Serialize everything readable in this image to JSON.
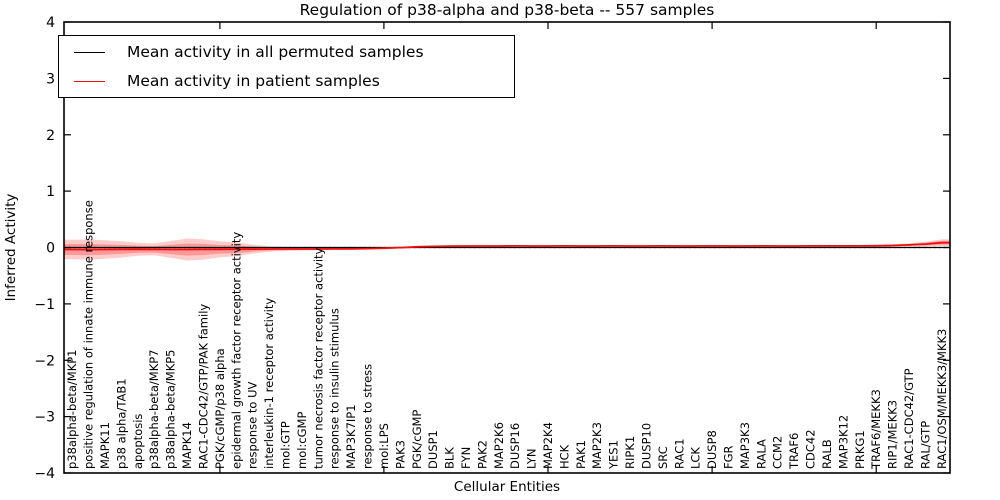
{
  "chart_data": {
    "type": "line",
    "title": "Regulation of p38-alpha and p38-beta -- 557 samples",
    "xlabel": "Cellular Entities",
    "ylabel": "Inferred Activity",
    "ylim": [
      -4,
      4
    ],
    "yticks": [
      4,
      3,
      2,
      1,
      0,
      -1,
      -2,
      -3,
      -4
    ],
    "xticks_major": [
      10,
      20,
      30,
      40,
      50
    ],
    "grid": false,
    "legend_position": "upper left",
    "zero_line_style": "dotted",
    "categories": [
      "p38alpha-beta/MKP1",
      "positive regulation of innate immune response",
      "MAPK11",
      "p38 alpha/TAB1",
      "apoptosis",
      "p38alpha-beta/MKP7",
      "p38alpha-beta/MKP5",
      "MAPK14",
      "RAC1-CDC42/GTP/PAK family",
      "PGK/cGMP/p38 alpha",
      "epidermal growth factor receptor activity",
      "response to UV",
      "interleukin-1 receptor activity",
      "mol:GTP",
      "mol:cGMP",
      "tumor necrosis factor receptor activity",
      "response to insulin stimulus",
      "MAP3K7IP1",
      "response to stress",
      "mol:LPS",
      "PAK3",
      "PGK/cGMP",
      "DUSP1",
      "BLK",
      "FYN",
      "PAK2",
      "MAP2K6",
      "DUSP16",
      "LYN",
      "MAP2K4",
      "HCK",
      "PAK1",
      "MAP2K3",
      "YES1",
      "RIPK1",
      "DUSP10",
      "SRC",
      "RAC1",
      "LCK",
      "DUSP8",
      "FGR",
      "MAP3K3",
      "RALA",
      "CCM2",
      "TRAF6",
      "CDC42",
      "RALB",
      "MAP3K12",
      "PRKG1",
      "TRAF6/MEKK3",
      "RIP1/MEKK3",
      "RAC1-CDC42/GTP",
      "RAL/GTP",
      "RAC1/OSM/MEKK3/MKK3"
    ],
    "series": [
      {
        "name": "Mean activity in all permuted samples",
        "color": "#000000",
        "values": [
          0,
          0,
          0,
          0,
          0,
          0,
          0,
          0,
          0,
          0,
          0,
          0,
          0,
          0,
          0,
          0,
          0,
          0,
          0,
          0,
          0,
          0,
          0,
          0,
          0,
          0,
          0,
          0,
          0,
          0,
          0,
          0,
          0,
          0,
          0,
          0,
          0,
          0,
          0,
          0,
          0,
          0,
          0,
          0,
          0,
          0,
          0,
          0,
          0,
          0,
          0,
          0,
          0,
          0
        ]
      },
      {
        "name": "Mean activity in patient samples",
        "color": "#ee1111",
        "values": [
          -0.035,
          -0.037,
          -0.035,
          -0.033,
          -0.03,
          -0.033,
          -0.035,
          -0.036,
          -0.034,
          -0.032,
          -0.03,
          -0.028,
          -0.027,
          -0.027,
          -0.026,
          -0.026,
          -0.025,
          -0.025,
          -0.02,
          -0.012,
          -0.002,
          0.012,
          0.02,
          0.024,
          0.026,
          0.027,
          0.027,
          0.028,
          0.027,
          0.027,
          0.028,
          0.027,
          0.027,
          0.028,
          0.027,
          0.027,
          0.028,
          0.027,
          0.027,
          0.028,
          0.027,
          0.027,
          0.028,
          0.027,
          0.027,
          0.028,
          0.028,
          0.028,
          0.029,
          0.031,
          0.036,
          0.046,
          0.06,
          0.085
        ]
      }
    ],
    "band": {
      "series": "Mean activity in patient samples",
      "color": "#ff0000",
      "outer_opacity": 0.2,
      "inner_opacity": 0.25,
      "inner_scale": 0.55,
      "half_widths": [
        0.175,
        0.18,
        0.165,
        0.145,
        0.115,
        0.105,
        0.15,
        0.195,
        0.18,
        0.14,
        0.125,
        0.08,
        0.05,
        0.035,
        0.027,
        0.022,
        0.02,
        0.018,
        0.015,
        0.013,
        0.012,
        0.012,
        0.012,
        0.012,
        0.012,
        0.012,
        0.012,
        0.012,
        0.012,
        0.012,
        0.012,
        0.012,
        0.012,
        0.012,
        0.012,
        0.012,
        0.012,
        0.012,
        0.012,
        0.012,
        0.012,
        0.012,
        0.012,
        0.012,
        0.012,
        0.012,
        0.013,
        0.014,
        0.015,
        0.017,
        0.022,
        0.03,
        0.042,
        0.06
      ]
    }
  }
}
